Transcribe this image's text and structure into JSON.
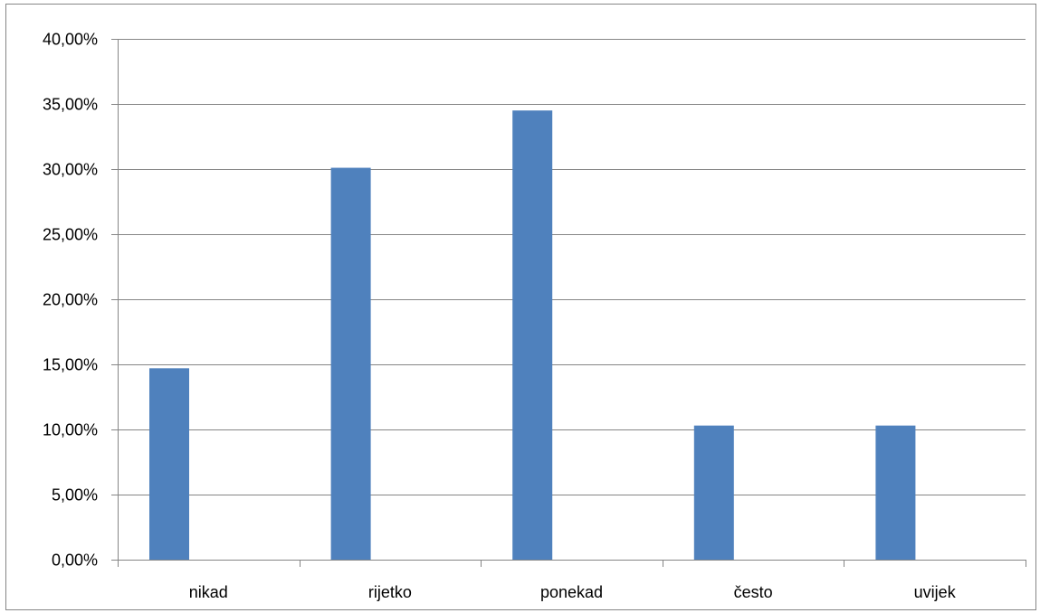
{
  "chart_data": {
    "type": "bar",
    "title": "",
    "xlabel": "",
    "ylabel": "",
    "categories": [
      "nikad",
      "rijetko",
      "ponekad",
      "često",
      "uvijek"
    ],
    "series": [
      {
        "values": [
          14.7,
          30.1,
          34.5,
          10.3,
          10.3
        ]
      }
    ],
    "ylim": [
      0,
      40
    ],
    "yticks": [
      0,
      5,
      10,
      15,
      20,
      25,
      30,
      35,
      40
    ],
    "ytick_labels": [
      "0,00%",
      "5,00%",
      "10,00%",
      "15,00%",
      "20,00%",
      "25,00%",
      "30,00%",
      "35,00%",
      "40,00%"
    ],
    "y_unit": "percent",
    "grid": true,
    "legend": "none",
    "colors": {
      "bar": "#4f81bd",
      "gridline": "#868686",
      "axis": "#868686",
      "text": "#000000"
    }
  }
}
